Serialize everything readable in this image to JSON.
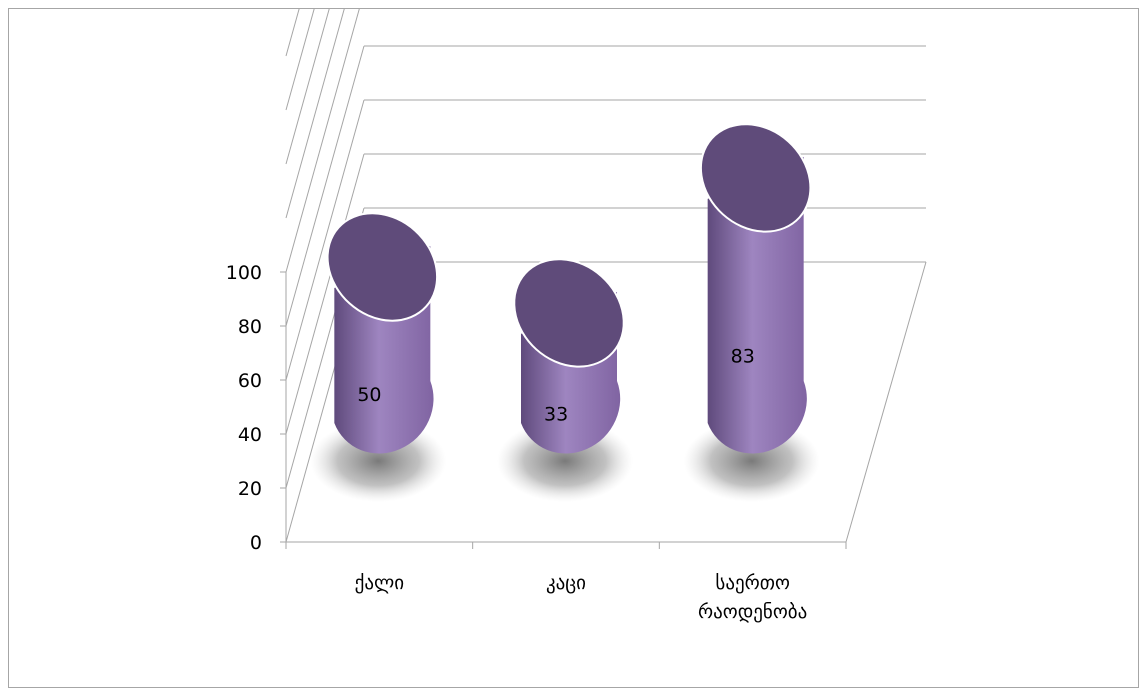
{
  "chart_data": {
    "type": "bar",
    "subtype": "3d-cylinder",
    "title": "",
    "xlabel": "",
    "ylabel": "",
    "categories": [
      [
        "ქალი"
      ],
      [
        "კაცი"
      ],
      [
        "საერთო",
        "რაოდენობა"
      ]
    ],
    "values": [
      50,
      33,
      83
    ],
    "ylim": [
      0,
      100
    ],
    "yticks": [
      "0",
      "20",
      "40",
      "60",
      "80",
      "100"
    ],
    "data_labels": [
      "50",
      "33",
      "83"
    ],
    "grid": true,
    "legend": "none",
    "colors": {
      "bar_side": "#8064a2",
      "bar_side_light": "#9e85c0",
      "bar_side_dark": "#5f4a7c",
      "bar_top": "#5f4b7a",
      "gridline": "#a6a6a6",
      "axis_text": "#000000"
    }
  }
}
